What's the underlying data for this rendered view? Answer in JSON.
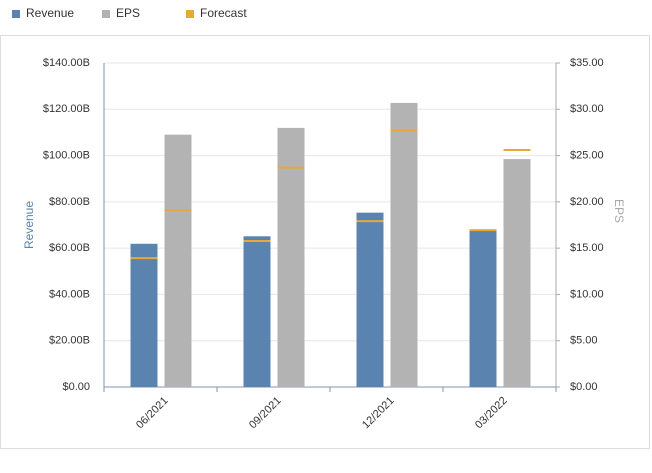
{
  "chart_data": {
    "type": "bar",
    "categories": [
      "06/2021",
      "09/2021",
      "12/2021",
      "03/2022"
    ],
    "series": [
      {
        "name": "Revenue",
        "color": "#5b83b0",
        "values": [
          61.88,
          65.12,
          75.33,
          68.01
        ],
        "forecast": [
          55.7,
          63.1,
          71.7,
          67.8
        ]
      },
      {
        "name": "EPS",
        "color": "#b3b3b3",
        "axis": "y2",
        "values": [
          27.26,
          27.99,
          30.69,
          24.62
        ],
        "forecast": [
          19.1,
          23.7,
          27.7,
          25.6
        ]
      }
    ],
    "forecast_name": "Forecast",
    "forecast_color": "#e8a838",
    "y_label": "Revenue",
    "y2_label": "EPS",
    "ylim": [
      0,
      140
    ],
    "yticks": [
      {
        "value": 0,
        "label": "$0.00"
      },
      {
        "value": 20,
        "label": "$20.00B"
      },
      {
        "value": 40,
        "label": "$40.00B"
      },
      {
        "value": 60,
        "label": "$60.00B"
      },
      {
        "value": 80,
        "label": "$80.00B"
      },
      {
        "value": 100,
        "label": "$100.00B"
      },
      {
        "value": 120,
        "label": "$120.00B"
      },
      {
        "value": 140,
        "label": "$140.00B"
      }
    ],
    "y2lim": [
      0,
      35
    ],
    "y2ticks": [
      {
        "value": 0,
        "label": "$0.00"
      },
      {
        "value": 5,
        "label": "$5.00"
      },
      {
        "value": 10,
        "label": "$10.00"
      },
      {
        "value": 15,
        "label": "$15.00"
      },
      {
        "value": 20,
        "label": "$20.00"
      },
      {
        "value": 25,
        "label": "$25.00"
      },
      {
        "value": 30,
        "label": "$30.00"
      },
      {
        "value": 35,
        "label": "$35.00"
      }
    ],
    "grid": true
  }
}
